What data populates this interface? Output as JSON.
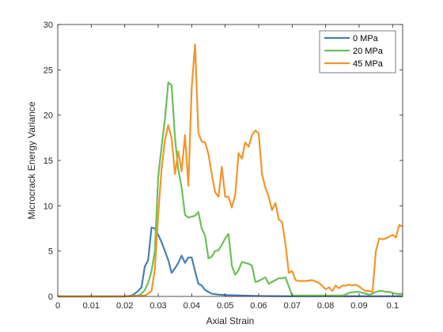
{
  "chart_data": {
    "type": "line",
    "title": "",
    "xlabel": "Axial Strain",
    "ylabel": "Microcrack Energy Variance",
    "xlim": [
      0,
      0.103
    ],
    "ylim": [
      0,
      30
    ],
    "xticks": [
      0,
      0.01,
      0.02,
      0.03,
      0.04,
      0.05,
      0.06,
      0.07,
      0.08,
      0.09,
      0.1
    ],
    "xtick_labels": [
      "0",
      "0.01",
      "0.02",
      "0.03",
      "0.04",
      "0.05",
      "0.06",
      "0.07",
      "0.08",
      "0.09",
      "0.1"
    ],
    "yticks": [
      0,
      5,
      10,
      15,
      20,
      25,
      30
    ],
    "ytick_labels": [
      "0",
      "5",
      "10",
      "15",
      "20",
      "25",
      "30"
    ],
    "grid": false,
    "legend_position": "top-right",
    "series": [
      {
        "name": "0 MPa",
        "color": "#4a7eb0",
        "x": [
          0,
          0.01,
          0.02,
          0.021,
          0.022,
          0.023,
          0.024,
          0.025,
          0.026,
          0.027,
          0.028,
          0.029,
          0.03,
          0.031,
          0.032,
          0.033,
          0.034,
          0.035,
          0.036,
          0.037,
          0.038,
          0.039,
          0.04,
          0.041,
          0.042,
          0.043,
          0.044,
          0.045,
          0.046,
          0.047,
          0.048,
          0.05,
          0.055,
          0.06,
          0.07,
          0.08,
          0.09,
          0.1,
          0.103
        ],
        "y": [
          0,
          0,
          0,
          0.05,
          0.1,
          0.3,
          0.6,
          1.0,
          3.3,
          4.0,
          7.6,
          7.5,
          6.8,
          6.0,
          5.0,
          4.0,
          2.6,
          3.1,
          3.7,
          4.5,
          3.7,
          4.3,
          4.3,
          2.8,
          1.4,
          1.2,
          0.7,
          0.5,
          0.3,
          0.25,
          0.2,
          0.15,
          0.1,
          0.05,
          0.02,
          0.02,
          0.02,
          0.02,
          0.02
        ]
      },
      {
        "name": "20 MPa",
        "color": "#6cbf5a",
        "x": [
          0,
          0.01,
          0.02,
          0.022,
          0.024,
          0.025,
          0.026,
          0.027,
          0.028,
          0.029,
          0.03,
          0.031,
          0.032,
          0.033,
          0.034,
          0.035,
          0.036,
          0.037,
          0.038,
          0.039,
          0.04,
          0.041,
          0.042,
          0.043,
          0.044,
          0.045,
          0.046,
          0.047,
          0.048,
          0.049,
          0.05,
          0.051,
          0.052,
          0.053,
          0.054,
          0.055,
          0.056,
          0.057,
          0.058,
          0.059,
          0.06,
          0.061,
          0.062,
          0.063,
          0.064,
          0.065,
          0.066,
          0.067,
          0.068,
          0.07,
          0.08,
          0.085,
          0.086,
          0.087,
          0.088,
          0.089,
          0.09,
          0.091,
          0.092,
          0.093,
          0.094,
          0.095,
          0.096,
          0.097,
          0.098,
          0.099,
          0.1,
          0.101,
          0.102,
          0.103
        ],
        "y": [
          0,
          0,
          0,
          0.05,
          0.1,
          0.3,
          0.7,
          1.5,
          2.8,
          5.0,
          13.2,
          16.5,
          19.5,
          23.6,
          23.3,
          17.5,
          14.0,
          12.0,
          9.0,
          8.7,
          8.8,
          8.9,
          9.3,
          7.5,
          6.7,
          4.2,
          4.4,
          5.0,
          5.1,
          5.7,
          6.4,
          6.9,
          3.4,
          2.4,
          2.9,
          3.8,
          3.7,
          3.6,
          3.4,
          1.6,
          1.7,
          1.9,
          2.1,
          1.4,
          1.6,
          1.8,
          2.0,
          2.0,
          2.1,
          0.1,
          0.1,
          0.1,
          0.2,
          0.4,
          0.45,
          0.5,
          0.5,
          0.4,
          0.3,
          0.2,
          0.3,
          0.5,
          0.6,
          0.6,
          0.5,
          0.5,
          0.4,
          0.3,
          0.25,
          0.3
        ]
      },
      {
        "name": "45 MPa",
        "color": "#f0962c",
        "x": [
          0,
          0.01,
          0.02,
          0.024,
          0.026,
          0.027,
          0.028,
          0.029,
          0.03,
          0.031,
          0.032,
          0.033,
          0.034,
          0.035,
          0.036,
          0.037,
          0.038,
          0.039,
          0.04,
          0.041,
          0.042,
          0.043,
          0.044,
          0.045,
          0.046,
          0.047,
          0.048,
          0.049,
          0.05,
          0.051,
          0.052,
          0.053,
          0.054,
          0.055,
          0.056,
          0.057,
          0.058,
          0.059,
          0.06,
          0.061,
          0.062,
          0.063,
          0.064,
          0.065,
          0.066,
          0.067,
          0.068,
          0.069,
          0.07,
          0.071,
          0.072,
          0.074,
          0.076,
          0.078,
          0.08,
          0.081,
          0.082,
          0.083,
          0.084,
          0.085,
          0.086,
          0.087,
          0.088,
          0.089,
          0.09,
          0.091,
          0.092,
          0.093,
          0.094,
          0.095,
          0.096,
          0.097,
          0.098,
          0.099,
          0.1,
          0.101,
          0.102,
          0.103
        ],
        "y": [
          0,
          0,
          0,
          0.05,
          0.1,
          0.3,
          0.6,
          3.0,
          9.0,
          14.0,
          17.2,
          18.9,
          17.5,
          13.5,
          16.0,
          13.8,
          17.8,
          12.2,
          23.0,
          27.8,
          18.0,
          17.1,
          17.0,
          15.7,
          13.5,
          11.5,
          11.0,
          14.3,
          11.0,
          11.0,
          9.8,
          11.2,
          15.8,
          15.2,
          17.0,
          16.5,
          17.8,
          18.3,
          18.0,
          13.5,
          12.0,
          11.0,
          9.5,
          10.3,
          8.5,
          8.2,
          5.8,
          2.6,
          2.8,
          1.8,
          1.7,
          1.7,
          1.8,
          1.5,
          0.8,
          1.0,
          0.6,
          1.2,
          0.9,
          1.2,
          1.2,
          1.3,
          1.2,
          1.3,
          1.1,
          0.8,
          0.6,
          0.6,
          0.5,
          5.0,
          6.4,
          6.3,
          6.4,
          6.6,
          6.8,
          6.5,
          7.9,
          7.7
        ]
      }
    ]
  }
}
